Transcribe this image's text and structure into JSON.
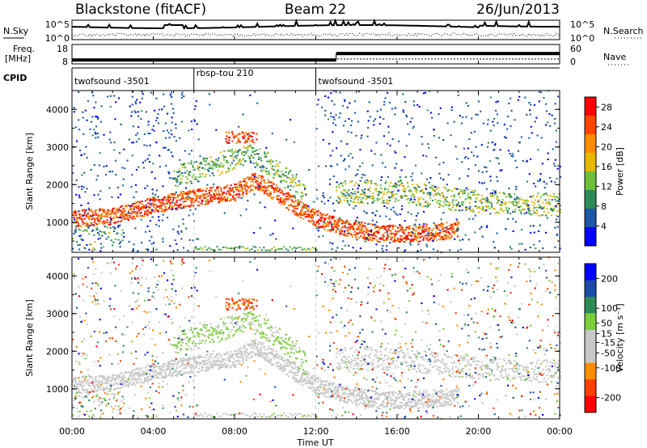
{
  "header": {
    "title": "Blackstone (fitACF)",
    "beam": "Beam 22",
    "date": "26/Jun/2013"
  },
  "noise_panel": {
    "left_label": "N.Sky",
    "right_label": "N.Search",
    "left_ticks": [
      "10^5",
      "10^0"
    ],
    "right_ticks": [
      "10^5",
      "10^0"
    ]
  },
  "freq_panel": {
    "left_label_1": "Freq.",
    "left_label_2": "[MHz]",
    "right_label": "Nave",
    "left_ticks": [
      "18",
      "8"
    ],
    "right_ticks": [
      "60",
      "0"
    ],
    "freq_mhz": 10.5,
    "nave_segments": [
      {
        "start_hour": 0.0,
        "end_hour": 13.0,
        "nave": 12
      },
      {
        "start_hour": 13.0,
        "end_hour": 24.0,
        "nave": 32
      }
    ]
  },
  "cpid": {
    "label": "CPID",
    "segments": [
      {
        "start_hour": 0.0,
        "name": "twofsound -3501"
      },
      {
        "start_hour": 6.0,
        "name": "rbsp-tou 210"
      },
      {
        "start_hour": 12.0,
        "name": "twofsound -3501"
      }
    ]
  },
  "colors": {
    "power_scale": [
      "#0000ff",
      "#1d57a6",
      "#2e8b57",
      "#6cbf3c",
      "#e6b800",
      "#ff8c00",
      "#ff4500",
      "#ff0000"
    ],
    "velocity_scale": [
      "#0000ff",
      "#1a4ba8",
      "#2e8b57",
      "#7ccd3c",
      "#c8c8c8",
      "#c8c8c8",
      "#ff8c00",
      "#ff4000",
      "#ff0000"
    ]
  },
  "chart_data": [
    {
      "type": "heatmap",
      "title": "Power",
      "xlabel": "",
      "ylabel": "Slant Range [km]",
      "xlim": [
        0,
        24
      ],
      "ylim": [
        200,
        4500
      ],
      "x_ticks": [
        "00:00",
        "04:00",
        "08:00",
        "12:00",
        "16:00",
        "20:00",
        "00:00"
      ],
      "y_ticks": [
        1000,
        2000,
        3000,
        4000
      ],
      "colorbar": {
        "label": "Power [dB]",
        "ticks": [
          4,
          8,
          12,
          16,
          20,
          24,
          28
        ],
        "range": [
          0,
          30
        ]
      },
      "features": [
        {
          "name": "near-range band",
          "points": [
            [
              0,
              1100
            ],
            [
              2,
              1150
            ],
            [
              4,
              1450
            ],
            [
              6,
              1650
            ],
            [
              8,
              1800
            ],
            [
              9,
              2100
            ],
            [
              10,
              1800
            ],
            [
              11,
              1400
            ],
            [
              12,
              1100
            ],
            [
              13,
              900
            ],
            [
              15,
              700
            ],
            [
              17,
              700
            ],
            [
              19,
              800
            ]
          ],
          "power": 24
        },
        {
          "name": "mid arc",
          "points": [
            [
              5,
              2200
            ],
            [
              7,
              2500
            ],
            [
              8.5,
              2800
            ],
            [
              9.5,
              2600
            ],
            [
              10.5,
              2200
            ],
            [
              11.5,
              1600
            ]
          ],
          "power": 12
        },
        {
          "name": "post-12UT band",
          "points": [
            [
              13,
              1800
            ],
            [
              16,
              1800
            ],
            [
              19,
              1600
            ],
            [
              22,
              1500
            ],
            [
              24,
              1450
            ]
          ],
          "power": 14
        }
      ]
    },
    {
      "type": "heatmap",
      "title": "Velocity",
      "xlabel": "Time UT",
      "ylabel": "Slant Range [km]",
      "xlim": [
        0,
        24
      ],
      "ylim": [
        200,
        4500
      ],
      "x_ticks": [
        "00:00",
        "04:00",
        "08:00",
        "12:00",
        "16:00",
        "20:00",
        "00:00"
      ],
      "y_ticks": [
        1000,
        2000,
        3000,
        4000
      ],
      "colorbar": {
        "label": "Velocity [m s⁻¹]",
        "ticks": [
          200,
          100,
          50,
          15,
          -15,
          -50,
          -100,
          -200
        ],
        "range": [
          -250,
          250
        ]
      },
      "features": [
        {
          "name": "near-range band",
          "velocity": -5
        },
        {
          "name": "mid arc",
          "velocity": 40
        },
        {
          "name": "post-12UT band",
          "velocity": 0
        }
      ]
    }
  ]
}
